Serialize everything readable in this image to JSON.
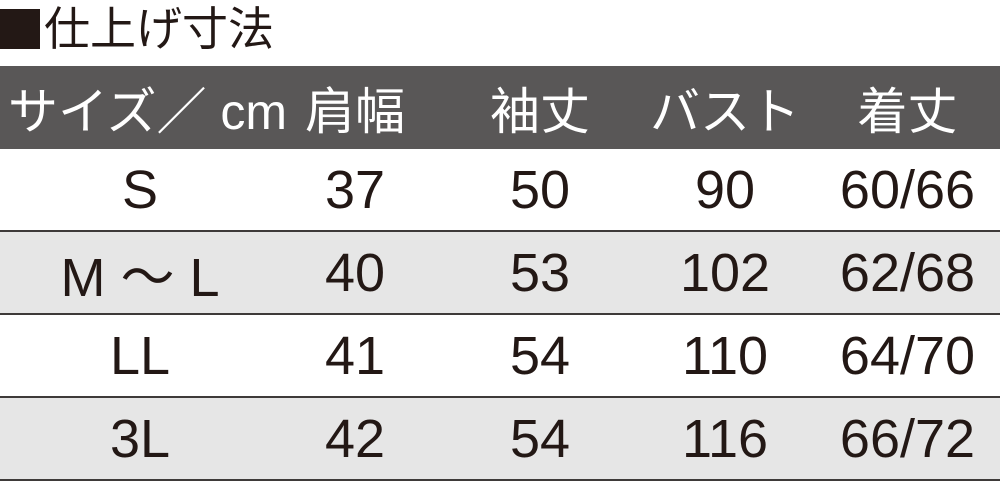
{
  "title": {
    "icon": "black-square",
    "text": "仕上げ寸法"
  },
  "colors": {
    "header_bg": "#595757",
    "alt_row_bg": "#e6e6e6",
    "text": "#231815"
  },
  "headers": [
    "サイズ／ cm",
    "肩幅",
    "袖丈",
    "バスト",
    "着丈"
  ],
  "rows": [
    [
      "S",
      "37",
      "50",
      "90",
      "60/66"
    ],
    [
      "M ～ L",
      "40",
      "53",
      "102",
      "62/68"
    ],
    [
      "LL",
      "41",
      "54",
      "110",
      "64/70"
    ],
    [
      "3L",
      "42",
      "54",
      "116",
      "66/72"
    ]
  ]
}
